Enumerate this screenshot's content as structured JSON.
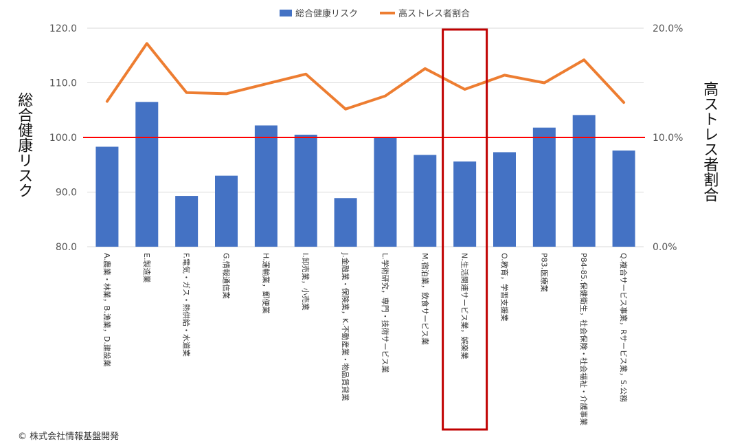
{
  "chart_data": {
    "type": "bar",
    "categories": [
      "A.農業・林業，B.漁業，D.建設業",
      "E.製造業",
      "F.電気・ガス・熱供給・水道業",
      "G.情報通信業",
      "H.運輸業，郵便業",
      "I.卸売業，小売業",
      "J.金融業・保険業，K.不動産業・物品賃貸業",
      "L.学術研究，専門・技術サービス業",
      "M.宿泊業，飲食サービス業",
      "N.生活関連サービス業，娯楽業",
      "O.教育，学習支援業",
      "P83.医療業",
      "P84-85.保健衛生，社会保険・社会福祉・介護事業",
      "Q.複合サービス事業，Rサービス業，S.公務"
    ],
    "series": [
      {
        "name": "総合健康リスク",
        "type": "bar",
        "axis": "left",
        "color": "#4472c4",
        "values": [
          98.3,
          106.5,
          89.3,
          93.0,
          102.2,
          100.5,
          88.9,
          100.0,
          96.8,
          95.6,
          97.3,
          101.8,
          104.1,
          97.6
        ]
      },
      {
        "name": "高ストレス者割合",
        "type": "line",
        "axis": "right",
        "color": "#ed7d31",
        "values": [
          13.3,
          18.6,
          14.1,
          14.0,
          14.9,
          15.8,
          12.6,
          13.8,
          16.3,
          14.4,
          15.7,
          15.0,
          17.1,
          13.2
        ]
      }
    ],
    "y_left": {
      "label": "総合健康リスク",
      "ticks": [
        "80.0",
        "90.0",
        "100.0",
        "110.0",
        "120.0"
      ],
      "ylim": [
        80,
        120
      ]
    },
    "y_right": {
      "label": "高ストレス者割合",
      "ticks": [
        "0.0%",
        "10.0%",
        "20.0%"
      ],
      "ylim": [
        0,
        20
      ]
    },
    "reference_line": {
      "value": 100,
      "axis": "left",
      "color": "#ff0000"
    },
    "highlight_category_index": 9,
    "highlight_color": "#c00000",
    "legend_position": "top-center",
    "grid": true
  },
  "copyright": "© 株式会社情報基盤開発"
}
